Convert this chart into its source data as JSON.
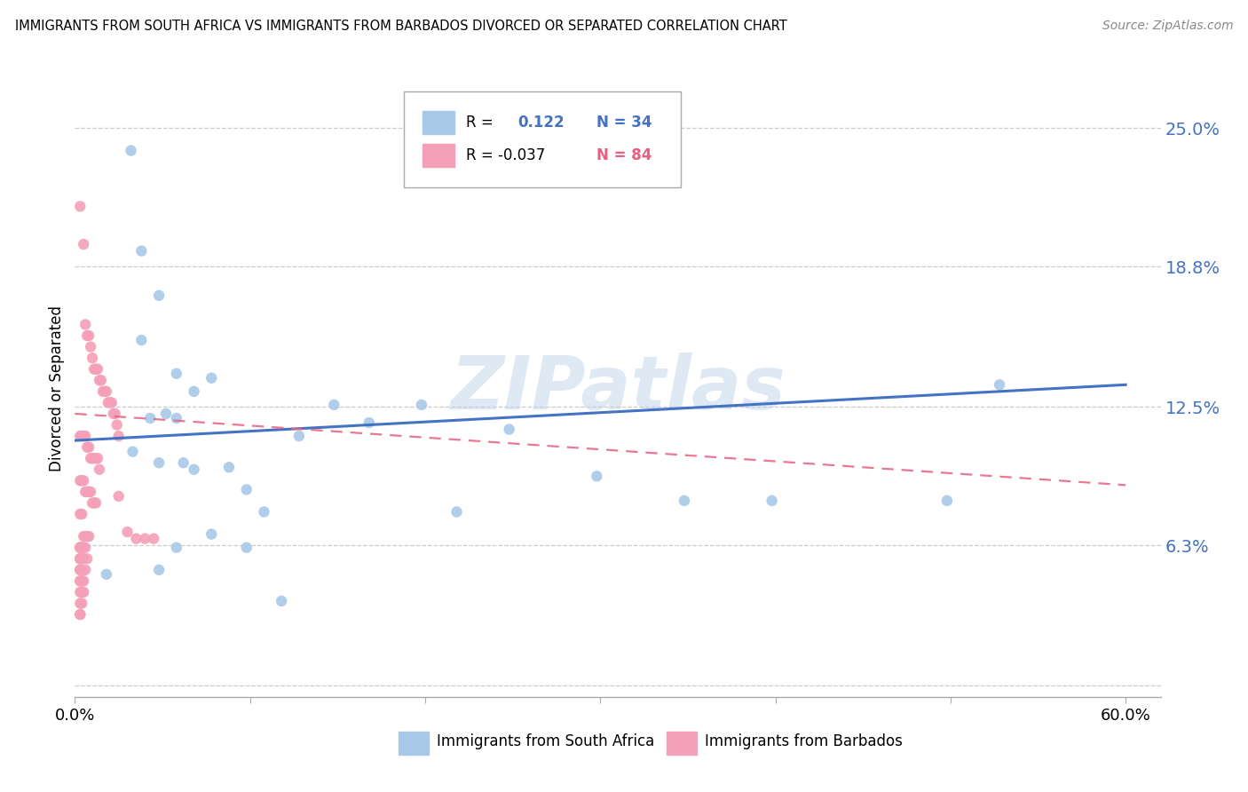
{
  "title": "IMMIGRANTS FROM SOUTH AFRICA VS IMMIGRANTS FROM BARBADOS DIVORCED OR SEPARATED CORRELATION CHART",
  "source": "Source: ZipAtlas.com",
  "ylabel": "Divorced or Separated",
  "yticks": [
    0.0,
    0.063,
    0.125,
    0.188,
    0.25
  ],
  "ytick_labels": [
    "",
    "6.3%",
    "12.5%",
    "18.8%",
    "25.0%"
  ],
  "xtick_vals": [
    0.0,
    0.1,
    0.2,
    0.3,
    0.4,
    0.5,
    0.6
  ],
  "xtick_labels": [
    "0.0%",
    "",
    "",
    "",
    "",
    "",
    "60.0%"
  ],
  "xlim": [
    0.0,
    0.62
  ],
  "ylim": [
    -0.005,
    0.272
  ],
  "blue_color": "#a8c8e8",
  "pink_color": "#f4a0b8",
  "blue_line_color": "#4472c4",
  "pink_line_color": "#e86080",
  "watermark": "ZIPatlas",
  "legend_label_blue": "Immigrants from South Africa",
  "legend_label_pink": "Immigrants from Barbados",
  "south_africa_x": [
    0.018,
    0.032,
    0.038,
    0.048,
    0.038,
    0.058,
    0.068,
    0.043,
    0.052,
    0.033,
    0.048,
    0.058,
    0.062,
    0.068,
    0.078,
    0.088,
    0.098,
    0.108,
    0.128,
    0.148,
    0.168,
    0.198,
    0.218,
    0.248,
    0.298,
    0.348,
    0.078,
    0.058,
    0.048,
    0.098,
    0.118,
    0.398,
    0.498,
    0.528
  ],
  "south_africa_y": [
    0.05,
    0.24,
    0.195,
    0.175,
    0.155,
    0.14,
    0.132,
    0.12,
    0.122,
    0.105,
    0.1,
    0.12,
    0.1,
    0.097,
    0.138,
    0.098,
    0.088,
    0.078,
    0.112,
    0.126,
    0.118,
    0.126,
    0.078,
    0.115,
    0.094,
    0.083,
    0.068,
    0.062,
    0.052,
    0.062,
    0.038,
    0.083,
    0.083,
    0.135
  ],
  "barbados_x": [
    0.003,
    0.005,
    0.006,
    0.007,
    0.008,
    0.009,
    0.01,
    0.011,
    0.012,
    0.013,
    0.014,
    0.015,
    0.016,
    0.017,
    0.018,
    0.019,
    0.02,
    0.021,
    0.022,
    0.023,
    0.024,
    0.025,
    0.003,
    0.004,
    0.005,
    0.006,
    0.007,
    0.008,
    0.009,
    0.01,
    0.011,
    0.012,
    0.013,
    0.014,
    0.003,
    0.004,
    0.005,
    0.006,
    0.007,
    0.008,
    0.009,
    0.01,
    0.011,
    0.012,
    0.003,
    0.004,
    0.005,
    0.006,
    0.007,
    0.008,
    0.003,
    0.004,
    0.005,
    0.006,
    0.007,
    0.003,
    0.004,
    0.005,
    0.006,
    0.003,
    0.004,
    0.005,
    0.003,
    0.004,
    0.005,
    0.003,
    0.004,
    0.003,
    0.004,
    0.003,
    0.003,
    0.004,
    0.003,
    0.003,
    0.003,
    0.003,
    0.003,
    0.003,
    0.003,
    0.025,
    0.03,
    0.035,
    0.04,
    0.045
  ],
  "barbados_y": [
    0.215,
    0.198,
    0.162,
    0.157,
    0.157,
    0.152,
    0.147,
    0.142,
    0.142,
    0.142,
    0.137,
    0.137,
    0.132,
    0.132,
    0.132,
    0.127,
    0.127,
    0.127,
    0.122,
    0.122,
    0.117,
    0.112,
    0.112,
    0.112,
    0.112,
    0.112,
    0.107,
    0.107,
    0.102,
    0.102,
    0.102,
    0.102,
    0.102,
    0.097,
    0.092,
    0.092,
    0.092,
    0.087,
    0.087,
    0.087,
    0.087,
    0.082,
    0.082,
    0.082,
    0.077,
    0.077,
    0.067,
    0.067,
    0.067,
    0.067,
    0.062,
    0.062,
    0.062,
    0.062,
    0.057,
    0.057,
    0.057,
    0.057,
    0.052,
    0.052,
    0.052,
    0.047,
    0.047,
    0.047,
    0.042,
    0.042,
    0.042,
    0.037,
    0.037,
    0.032,
    0.032,
    0.062,
    0.062,
    0.062,
    0.057,
    0.057,
    0.052,
    0.052,
    0.047,
    0.085,
    0.069,
    0.066,
    0.066,
    0.066
  ]
}
